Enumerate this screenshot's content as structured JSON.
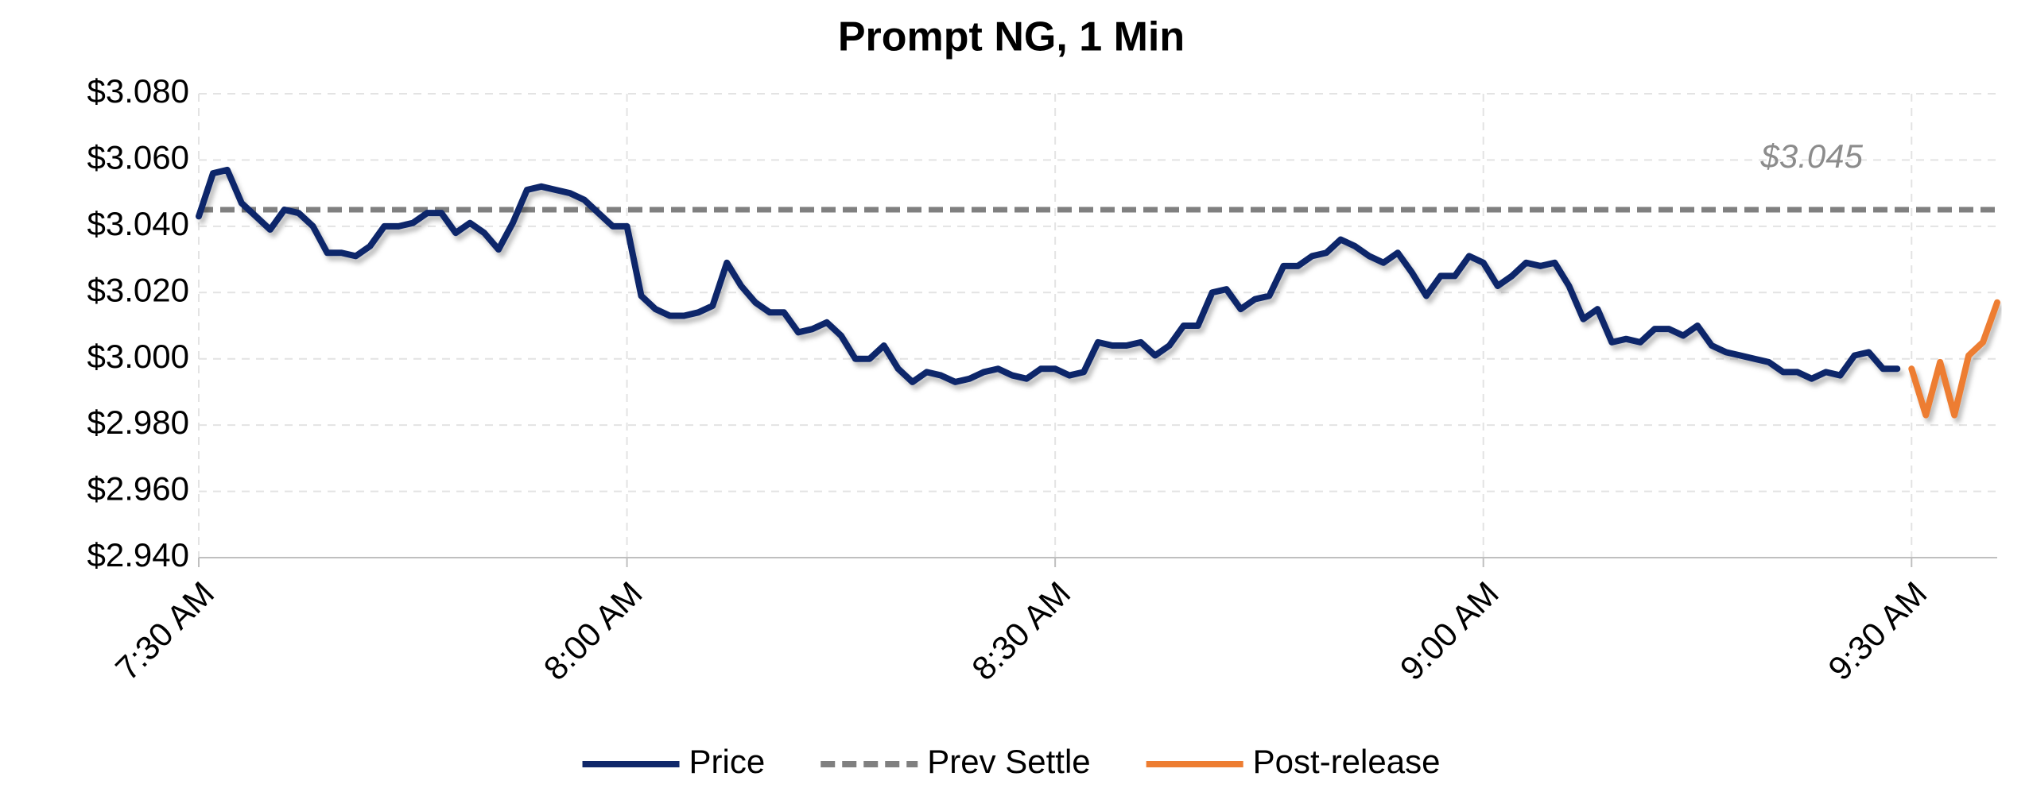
{
  "chart_data": {
    "type": "line",
    "title": "Prompt NG, 1 Min",
    "x": [
      "7:30 AM",
      "7:31 AM",
      "7:32 AM",
      "7:33 AM",
      "7:34 AM",
      "7:35 AM",
      "7:36 AM",
      "7:37 AM",
      "7:38 AM",
      "7:39 AM",
      "7:40 AM",
      "7:41 AM",
      "7:42 AM",
      "7:43 AM",
      "7:44 AM",
      "7:45 AM",
      "7:46 AM",
      "7:47 AM",
      "7:48 AM",
      "7:49 AM",
      "7:50 AM",
      "7:51 AM",
      "7:52 AM",
      "7:53 AM",
      "7:54 AM",
      "7:55 AM",
      "7:56 AM",
      "7:57 AM",
      "7:58 AM",
      "7:59 AM",
      "8:00 AM",
      "8:01 AM",
      "8:02 AM",
      "8:03 AM",
      "8:04 AM",
      "8:05 AM",
      "8:06 AM",
      "8:07 AM",
      "8:08 AM",
      "8:09 AM",
      "8:10 AM",
      "8:11 AM",
      "8:12 AM",
      "8:13 AM",
      "8:14 AM",
      "8:15 AM",
      "8:16 AM",
      "8:17 AM",
      "8:18 AM",
      "8:19 AM",
      "8:20 AM",
      "8:21 AM",
      "8:22 AM",
      "8:23 AM",
      "8:24 AM",
      "8:25 AM",
      "8:26 AM",
      "8:27 AM",
      "8:28 AM",
      "8:29 AM",
      "8:30 AM",
      "8:31 AM",
      "8:32 AM",
      "8:33 AM",
      "8:34 AM",
      "8:35 AM",
      "8:36 AM",
      "8:37 AM",
      "8:38 AM",
      "8:39 AM",
      "8:40 AM",
      "8:41 AM",
      "8:42 AM",
      "8:43 AM",
      "8:44 AM",
      "8:45 AM",
      "8:46 AM",
      "8:47 AM",
      "8:48 AM",
      "8:49 AM",
      "8:50 AM",
      "8:51 AM",
      "8:52 AM",
      "8:53 AM",
      "8:54 AM",
      "8:55 AM",
      "8:56 AM",
      "8:57 AM",
      "8:58 AM",
      "8:59 AM",
      "9:00 AM",
      "9:01 AM",
      "9:02 AM",
      "9:03 AM",
      "9:04 AM",
      "9:05 AM",
      "9:06 AM",
      "9:07 AM",
      "9:08 AM",
      "9:09 AM",
      "9:10 AM",
      "9:11 AM",
      "9:12 AM",
      "9:13 AM",
      "9:14 AM",
      "9:15 AM",
      "9:16 AM",
      "9:17 AM",
      "9:18 AM",
      "9:19 AM",
      "9:20 AM",
      "9:21 AM",
      "9:22 AM",
      "9:23 AM",
      "9:24 AM",
      "9:25 AM",
      "9:26 AM",
      "9:27 AM",
      "9:28 AM",
      "9:29 AM",
      "9:30 AM",
      "9:31 AM",
      "9:32 AM",
      "9:33 AM",
      "9:34 AM",
      "9:35 AM",
      "9:36 AM"
    ],
    "series": [
      {
        "name": "Price",
        "color": "#10286a",
        "values": [
          3.043,
          3.056,
          3.057,
          3.047,
          3.043,
          3.039,
          3.045,
          3.044,
          3.04,
          3.032,
          3.032,
          3.031,
          3.034,
          3.04,
          3.04,
          3.041,
          3.044,
          3.044,
          3.038,
          3.041,
          3.038,
          3.033,
          3.041,
          3.051,
          3.052,
          3.051,
          3.05,
          3.048,
          3.044,
          3.04,
          3.04,
          3.019,
          3.015,
          3.013,
          3.013,
          3.014,
          3.016,
          3.029,
          3.022,
          3.017,
          3.014,
          3.014,
          3.008,
          3.009,
          3.011,
          3.007,
          3.0,
          3.0,
          3.004,
          2.997,
          2.993,
          2.996,
          2.995,
          2.993,
          2.994,
          2.996,
          2.997,
          2.995,
          2.994,
          2.997,
          2.997,
          2.995,
          2.996,
          3.005,
          3.004,
          3.004,
          3.005,
          3.001,
          3.004,
          3.01,
          3.01,
          3.02,
          3.021,
          3.015,
          3.018,
          3.019,
          3.028,
          3.028,
          3.031,
          3.032,
          3.036,
          3.034,
          3.031,
          3.029,
          3.032,
          3.026,
          3.019,
          3.025,
          3.025,
          3.031,
          3.029,
          3.022,
          3.025,
          3.029,
          3.028,
          3.029,
          3.022,
          3.012,
          3.015,
          3.005,
          3.006,
          3.005,
          3.009,
          3.009,
          3.007,
          3.01,
          3.004,
          3.002,
          3.001,
          3.0,
          2.999,
          2.996,
          2.996,
          2.994,
          2.996,
          2.995,
          3.001,
          3.002,
          2.997,
          2.997,
          null,
          null,
          null,
          null,
          null,
          null,
          null
        ]
      },
      {
        "name": "Post-release",
        "color": "#ed7d31",
        "values": [
          null,
          null,
          null,
          null,
          null,
          null,
          null,
          null,
          null,
          null,
          null,
          null,
          null,
          null,
          null,
          null,
          null,
          null,
          null,
          null,
          null,
          null,
          null,
          null,
          null,
          null,
          null,
          null,
          null,
          null,
          null,
          null,
          null,
          null,
          null,
          null,
          null,
          null,
          null,
          null,
          null,
          null,
          null,
          null,
          null,
          null,
          null,
          null,
          null,
          null,
          null,
          null,
          null,
          null,
          null,
          null,
          null,
          null,
          null,
          null,
          null,
          null,
          null,
          null,
          null,
          null,
          null,
          null,
          null,
          null,
          null,
          null,
          null,
          null,
          null,
          null,
          null,
          null,
          null,
          null,
          null,
          null,
          null,
          null,
          null,
          null,
          null,
          null,
          null,
          null,
          null,
          null,
          null,
          null,
          null,
          null,
          null,
          null,
          null,
          null,
          null,
          null,
          null,
          null,
          null,
          null,
          null,
          null,
          null,
          null,
          null,
          null,
          null,
          null,
          null,
          null,
          null,
          null,
          null,
          null,
          2.997,
          2.983,
          2.999,
          2.983,
          3.001,
          3.005,
          3.017
        ]
      }
    ],
    "reference_line": {
      "name": "Prev Settle",
      "value": 3.045,
      "label": "$3.045",
      "color": "#808080",
      "dashed": true
    },
    "xlim": [
      "7:30 AM",
      "9:36 AM"
    ],
    "xticks": [
      "7:30 AM",
      "8:00 AM",
      "8:30 AM",
      "9:00 AM",
      "9:30 AM"
    ],
    "ylim": [
      2.94,
      3.08
    ],
    "yticks": [
      {
        "value": 2.94,
        "label": "$2.940"
      },
      {
        "value": 2.96,
        "label": "$2.960"
      },
      {
        "value": 2.98,
        "label": "$2.980"
      },
      {
        "value": 3.0,
        "label": "$3.000"
      },
      {
        "value": 3.02,
        "label": "$3.020"
      },
      {
        "value": 3.04,
        "label": "$3.040"
      },
      {
        "value": 3.06,
        "label": "$3.060"
      },
      {
        "value": 3.08,
        "label": "$3.080"
      }
    ],
    "grid": true,
    "legend": "bottom"
  }
}
